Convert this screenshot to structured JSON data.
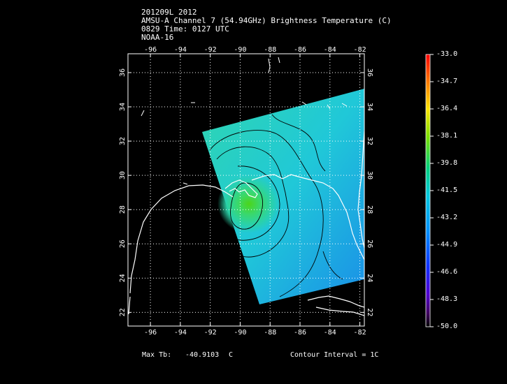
{
  "header": {
    "line1": "201209L 2012",
    "line2": "AMSU-A Channel 7 (54.94GHz) Brightness Temperature (C)",
    "line3": "0829 Time: 0127 UTC",
    "line4": "NOAA-16"
  },
  "map": {
    "lon_labels": [
      "-96",
      "-94",
      "-92",
      "-90",
      "-88",
      "-86",
      "-84",
      "-82"
    ],
    "lat_labels": [
      "22",
      "24",
      "26",
      "28",
      "30",
      "32",
      "34",
      "36"
    ],
    "lon_range": [
      -97.5,
      -81.7
    ],
    "lat_range": [
      21.2,
      37.1
    ]
  },
  "colorbar": {
    "labels": [
      "-33.0",
      "-34.7",
      "-36.4",
      "-38.1",
      "-39.8",
      "-41.5",
      "-43.2",
      "-44.9",
      "-46.6",
      "-48.3",
      "-50.0"
    ],
    "range": [
      -50.0,
      -33.0
    ]
  },
  "footer": {
    "max_tb_label": "Max Tb:",
    "max_tb_value": "-40.9103",
    "max_tb_unit": "C",
    "contour_interval": "Contour Interval = 1C"
  }
}
